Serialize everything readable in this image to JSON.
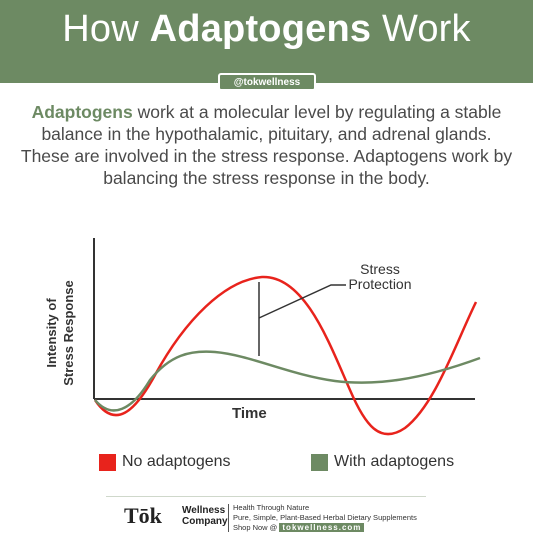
{
  "header": {
    "title_pre": "How ",
    "title_bold": "Adaptogens",
    "title_post": " Work",
    "handle": "@tokwellness"
  },
  "intro": {
    "keyword": "Adaptogens",
    "text": " work at a molecular level by regulating a stable balance in the hypothalamic, pituitary, and adrenal glands. These are involved in the stress response. Adaptogens work by balancing the stress response in the body."
  },
  "diagram": {
    "y_label_line1": "Intensity of",
    "y_label_line2": "Stress Response",
    "x_label": "Time",
    "annotation_line1": "Stress",
    "annotation_line2": "Protection",
    "curves": [
      {
        "id": "no-adaptogens",
        "color": "#e8231c"
      },
      {
        "id": "with-adaptogens",
        "color": "#6d8a63"
      }
    ]
  },
  "legend": {
    "no_label": "No adaptogens",
    "no_color": "#e8231c",
    "with_label": "With adaptogens",
    "with_color": "#6d8a63"
  },
  "footer": {
    "brand": "Tōk",
    "brand_line1": "Wellness",
    "brand_line2": "Company",
    "tag_line1": "Health Through Nature",
    "tag_line2": "Pure, Simple, Plant-Based Herbal Dietary Supplements",
    "tag_prefix": "Shop Now @ ",
    "site": "tokwellness.com"
  }
}
